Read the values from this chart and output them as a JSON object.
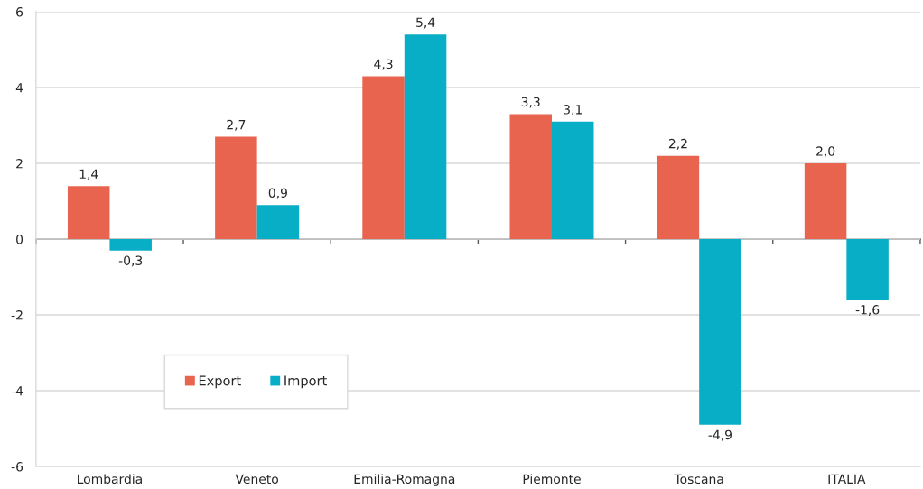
{
  "chart_data": {
    "type": "bar",
    "categories": [
      "Lombardia",
      "Veneto",
      "Emilia-Romagna",
      "Piemonte",
      "Toscana",
      "ITALIA"
    ],
    "series": [
      {
        "name": "Export",
        "color": "#e8644f",
        "values": [
          1.4,
          2.7,
          4.3,
          3.3,
          2.2,
          2.0
        ],
        "value_labels": [
          "1,4",
          "2,7",
          "4,3",
          "3,3",
          "2,2",
          "2,0"
        ]
      },
      {
        "name": "Import",
        "color": "#08aec5",
        "values": [
          -0.3,
          0.9,
          5.4,
          3.1,
          -4.9,
          -1.6
        ],
        "value_labels": [
          "-0,3",
          "0,9",
          "5,4",
          "3,1",
          "-4,9",
          "-1,6"
        ]
      }
    ],
    "ylim": [
      -6,
      6
    ],
    "yticks": [
      -6,
      -4,
      -2,
      0,
      2,
      4,
      6
    ],
    "grid": "y",
    "legend": "bottom left"
  }
}
